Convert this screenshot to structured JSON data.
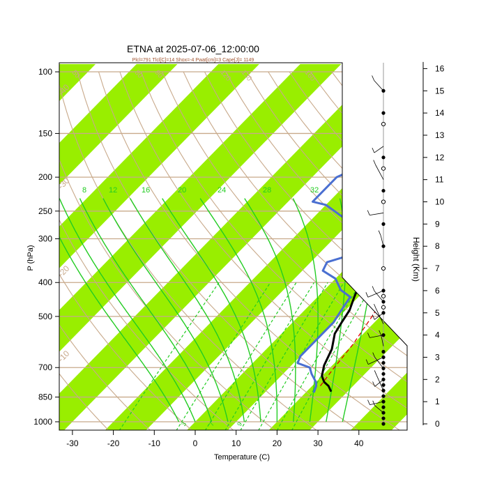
{
  "chart_data": {
    "type": "line",
    "title": "ETNA at 2025-07-06_12:00:00",
    "subtitle": "Plcl=791 Tlcl[C]=14 Shox=-4 Pwat[cm]=3 Cape[J]= 1149",
    "xlabel": "Temperature (C)",
    "ylabel": "P (hPa)",
    "ylabel_right": "Height (Km)",
    "xlim": [
      -33,
      53
    ],
    "ylim": [
      1050,
      100
    ],
    "x_ticks": [
      "-30",
      "-20",
      "-10",
      "0",
      "10",
      "20",
      "30",
      "40"
    ],
    "x_tick_values": [
      -30,
      -20,
      -10,
      0,
      10,
      20,
      30,
      40
    ],
    "p_ticks": [
      "100",
      "150",
      "200",
      "250",
      "300",
      "400",
      "500",
      "700",
      "850",
      "1000"
    ],
    "p_tick_values": [
      100,
      150,
      200,
      250,
      300,
      400,
      500,
      700,
      850,
      1000
    ],
    "height_ticks": [
      "0",
      "1",
      "2",
      "3",
      "4",
      "5",
      "6",
      "7",
      "8",
      "9",
      "10",
      "11",
      "12",
      "13",
      "14",
      "15",
      "16"
    ],
    "height_tick_values": [
      0,
      1,
      2,
      3,
      4,
      5,
      6,
      7,
      8,
      9,
      10,
      11,
      12,
      13,
      14,
      15,
      16
    ],
    "isotherm_labels": [
      "-40",
      "-30",
      "-20",
      "-10",
      "0",
      "10",
      "20",
      "30"
    ],
    "isotherm_label_values": [
      -40,
      -30,
      -20,
      -10,
      0,
      10,
      20,
      30
    ],
    "dry_adiabat_labels": [
      "50",
      "80",
      "90",
      "120",
      "130",
      "160"
    ],
    "moist_adiabat_labels": [
      "8",
      "12",
      "16",
      "20",
      "24",
      "28",
      "32"
    ],
    "mixing_ratio_labels": [
      "3",
      "7",
      "9"
    ],
    "series": [
      {
        "name": "",
        "role": "temperature",
        "color": "#000000",
        "points": [
          [
            26,
            820
          ],
          [
            24,
            790
          ],
          [
            22,
            770
          ],
          [
            20,
            740
          ],
          [
            18,
            690
          ],
          [
            16,
            620
          ],
          [
            13,
            560
          ],
          [
            12,
            520
          ],
          [
            11,
            480
          ],
          [
            9,
            440
          ],
          [
            7,
            400
          ],
          [
            5,
            350
          ],
          [
            4,
            300
          ],
          [
            4,
            270
          ],
          [
            5,
            250
          ],
          [
            6,
            230
          ],
          [
            8,
            200
          ],
          [
            7,
            180
          ],
          [
            5,
            165
          ],
          [
            5,
            150
          ],
          [
            5,
            135
          ],
          [
            6,
            120
          ],
          [
            7,
            105
          ]
        ]
      },
      {
        "name": "",
        "role": "dewpoint",
        "color": "#4a6fd1",
        "points": [
          [
            22,
            825
          ],
          [
            21,
            790
          ],
          [
            20,
            770
          ],
          [
            17,
            730
          ],
          [
            15,
            700
          ],
          [
            11,
            680
          ],
          [
            10,
            650
          ],
          [
            10,
            600
          ],
          [
            10,
            520
          ],
          [
            9,
            480
          ],
          [
            8,
            440
          ],
          [
            4,
            420
          ],
          [
            0,
            390
          ],
          [
            -5,
            370
          ],
          [
            -6,
            350
          ],
          [
            -1,
            330
          ],
          [
            -2,
            300
          ],
          [
            -7,
            280
          ],
          [
            -13,
            260
          ],
          [
            -20,
            240
          ],
          [
            -24,
            235
          ],
          [
            -24,
            200
          ],
          [
            -19,
            180
          ],
          [
            -15,
            160
          ],
          [
            -12,
            140
          ],
          [
            -9,
            120
          ],
          [
            -4,
            105
          ]
        ]
      },
      {
        "name": "",
        "role": "parcel",
        "color": "#dd0000",
        "points": [
          [
            22,
            790
          ],
          [
            21,
            700
          ],
          [
            20,
            600
          ],
          [
            18,
            500
          ],
          [
            15,
            400
          ],
          [
            11,
            330
          ],
          [
            8,
            300
          ]
        ]
      }
    ],
    "height_dots_filled_km": [
      0,
      0.25,
      0.5,
      0.75,
      1,
      1.25,
      1.5,
      1.75,
      2,
      2.25,
      2.5,
      2.75,
      3,
      3.25,
      4,
      5,
      5.5,
      6,
      8,
      9,
      10.5,
      12,
      14,
      15
    ],
    "height_dots_open_km": [
      5.25,
      5.75,
      7,
      10,
      11.5,
      13.5
    ],
    "wind_barb_heights_km": [
      0.5,
      1,
      1.5,
      2,
      2.5,
      3,
      3.5,
      4,
      4.5,
      5,
      5.5,
      6,
      8,
      9.5,
      11,
      12.5,
      15
    ],
    "grid": true,
    "colors": {
      "isotherm_band": "#99ee00",
      "isobar": "#c8a98a",
      "dry_adiabat": "#c8a98a",
      "moist_adiabat": "#22cc22",
      "mixing_ratio": "#22cc22",
      "temperature": "#000000",
      "dewpoint": "#4a6fd1",
      "parcel": "#dd0000"
    }
  }
}
